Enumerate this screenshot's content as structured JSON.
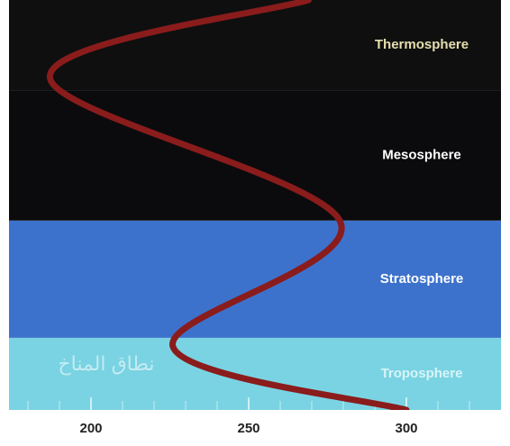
{
  "chart_data": {
    "type": "line",
    "xlim": [
      174,
      330
    ],
    "ylim": [
      0,
      100
    ],
    "xticks": [
      200,
      250,
      300
    ],
    "xminorticks": [
      180,
      190,
      200,
      210,
      220,
      230,
      240,
      250,
      260,
      270,
      280,
      290,
      300,
      310,
      320
    ],
    "bands": [
      {
        "label": "Troposphere",
        "from": 0,
        "to": 17.6,
        "color": "#79d3e2",
        "text_color": "#d8f4f8"
      },
      {
        "label": "Stratosphere",
        "from": 17.6,
        "to": 46.2,
        "color": "#3d72cc",
        "text_color": "#ffffff"
      },
      {
        "label": "Mesosphere",
        "from": 46.2,
        "to": 78,
        "color": "#0b0b0d",
        "text_color": "#ffffff"
      },
      {
        "label": "Thermosphere",
        "from": 78,
        "to": 100,
        "color": "#0f0f0f",
        "text_color": "#e6dfb0"
      }
    ],
    "annotation": "نطاق المناخ",
    "series": [
      {
        "color": "#8a1c1c",
        "x": [
          300,
          226,
          279,
          187,
          269
        ],
        "values": [
          0,
          15.4,
          46,
          81,
          100
        ]
      }
    ]
  }
}
